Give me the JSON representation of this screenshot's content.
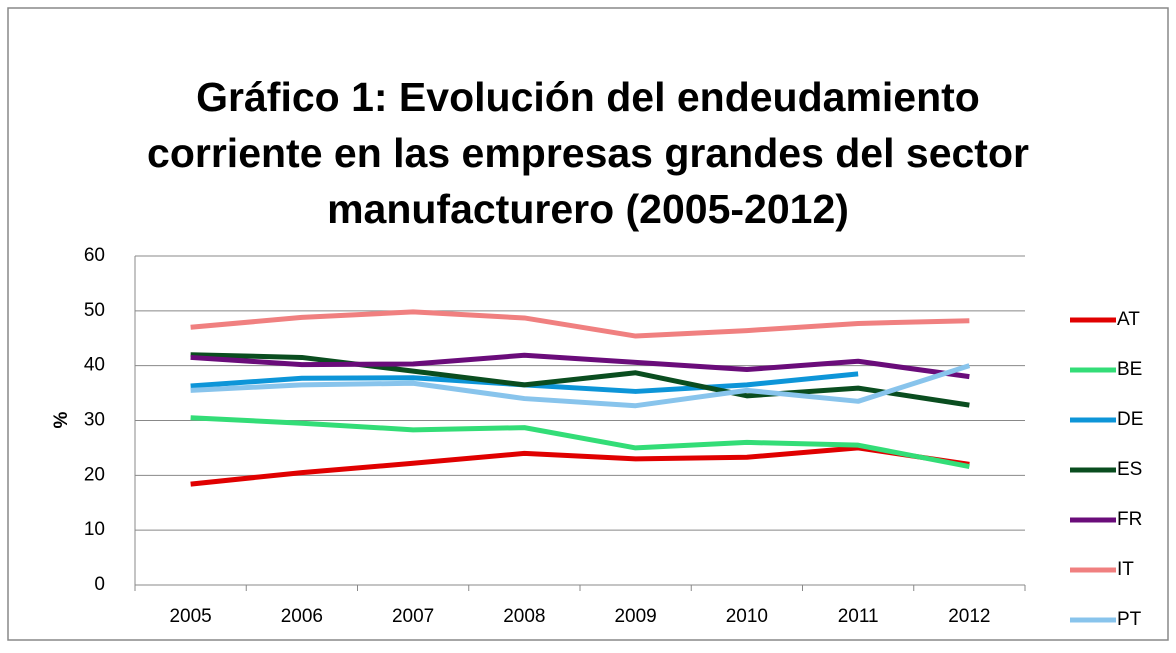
{
  "chart_data": {
    "type": "line",
    "title": [
      "Gráfico 1: Evolución del endeudamiento",
      "corriente en las empresas grandes del sector",
      "manufacturero (2005-2012)"
    ],
    "y_label": "%",
    "categories": [
      "2005",
      "2006",
      "2007",
      "2008",
      "2009",
      "2010",
      "2011",
      "2012"
    ],
    "series": [
      {
        "name": "AT",
        "color": "#e00000",
        "values": [
          18.4,
          20.5,
          22.2,
          24.0,
          23.0,
          23.3,
          25.0,
          22.0
        ]
      },
      {
        "name": "BE",
        "color": "#33dd77",
        "values": [
          30.5,
          29.5,
          28.3,
          28.7,
          25.0,
          26.0,
          25.5,
          21.6
        ]
      },
      {
        "name": "DE",
        "color": "#0d95d8",
        "values": [
          36.3,
          37.7,
          37.8,
          36.5,
          35.3,
          36.5,
          38.5,
          null
        ]
      },
      {
        "name": "ES",
        "color": "#0a4d1f",
        "values": [
          42.0,
          41.5,
          39.0,
          36.5,
          38.7,
          34.5,
          35.9,
          32.8
        ]
      },
      {
        "name": "FR",
        "color": "#6a0c7a",
        "values": [
          41.5,
          40.2,
          40.3,
          41.9,
          40.6,
          39.3,
          40.8,
          38.0
        ]
      },
      {
        "name": "IT",
        "color": "#f08080",
        "values": [
          47.0,
          48.8,
          49.8,
          48.7,
          45.4,
          46.4,
          47.7,
          48.2
        ]
      },
      {
        "name": "PT",
        "color": "#88c4ec",
        "values": [
          35.5,
          36.5,
          36.8,
          34.0,
          32.7,
          35.5,
          33.5,
          40.0
        ]
      }
    ],
    "ylim": [
      0,
      60
    ],
    "yticks": [
      0,
      10,
      20,
      30,
      40,
      50,
      60
    ],
    "grid": true,
    "legend": "right"
  }
}
